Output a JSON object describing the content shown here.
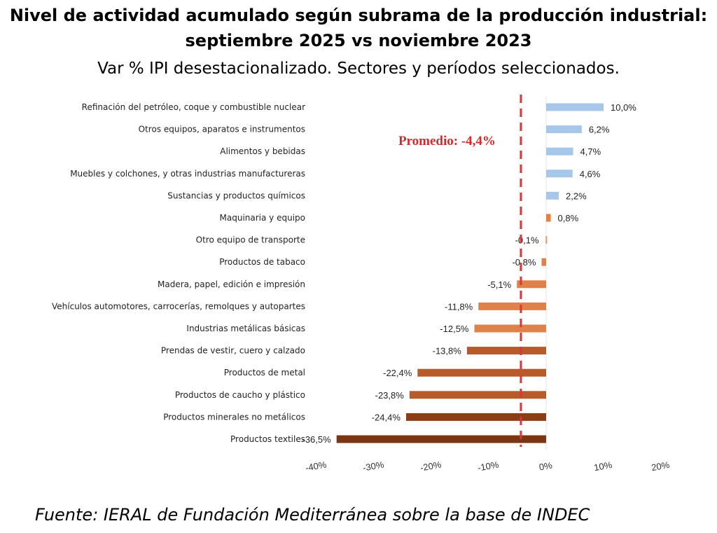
{
  "header": {
    "title": "Nivel de actividad acumulado según subrama de la producción industrial:  septiembre 2025 vs noviembre 2023",
    "subtitle": "Var % IPI desestacionalizado. Sectores y períodos seleccionados."
  },
  "footer": {
    "source": "Fuente: IERAL de Fundación Mediterránea sobre la base de INDEC"
  },
  "chart_data": {
    "type": "bar",
    "orientation": "horizontal",
    "title": "Nivel de actividad acumulado según subrama de la producción industrial:  septiembre 2025 vs noviembre 2023",
    "subtitle": "Var % IPI desestacionalizado. Sectores y períodos seleccionados.",
    "xlabel": "",
    "ylabel": "",
    "xlim": [
      -40,
      20
    ],
    "ticks": [
      -40,
      -30,
      -20,
      -10,
      0,
      10,
      20
    ],
    "tick_labels": [
      "-40%",
      "-30%",
      "-20%",
      "-10%",
      "0%",
      "10%",
      "20%"
    ],
    "grid": false,
    "categories": [
      "Refinación del petróleo, coque y combustible nuclear",
      "Otros equipos, aparatos e instrumentos",
      "Alimentos y bebidas",
      "Muebles y colchones, y otras industrias manufactureras",
      "Sustancias y productos químicos",
      "Maquinaria y equipo",
      "Otro equipo de transporte",
      "Productos de tabaco",
      "Madera, papel, edición e impresión",
      "Vehículos automotores, carrocerías, remolques y autopartes",
      "Industrias metálicas básicas",
      "Prendas de vestir, cuero y calzado",
      "Productos de metal",
      "Productos de caucho y plástico",
      "Productos minerales no metálicos",
      "Productos textiles"
    ],
    "values": [
      10.0,
      6.2,
      4.7,
      4.6,
      2.2,
      0.8,
      -0.1,
      -0.8,
      -5.1,
      -11.8,
      -12.5,
      -13.8,
      -22.4,
      -23.8,
      -24.4,
      -36.5
    ],
    "value_labels": [
      "10,0%",
      "6,2%",
      "4,7%",
      "4,6%",
      "2,2%",
      "0,8%",
      "-0,1%",
      "-0,8%",
      "-5,1%",
      "-11,8%",
      "-12,5%",
      "-13,8%",
      "-22,4%",
      "-23,8%",
      "-24,4%",
      "-36,5%"
    ],
    "colors": [
      "#a7c7ea",
      "#a7c7ea",
      "#a7c7ea",
      "#a7c7ea",
      "#a7c7ea",
      "#e0814a",
      "#e79a6f",
      "#e0814a",
      "#e0814a",
      "#e0814a",
      "#e0814a",
      "#b95a2a",
      "#b95a2a",
      "#b95a2a",
      "#8b3e16",
      "#7b3512"
    ],
    "reference_line": {
      "value": -4.4,
      "label": "Promedio: -4,4%",
      "color": "#d9363e",
      "style": "dashed"
    }
  }
}
